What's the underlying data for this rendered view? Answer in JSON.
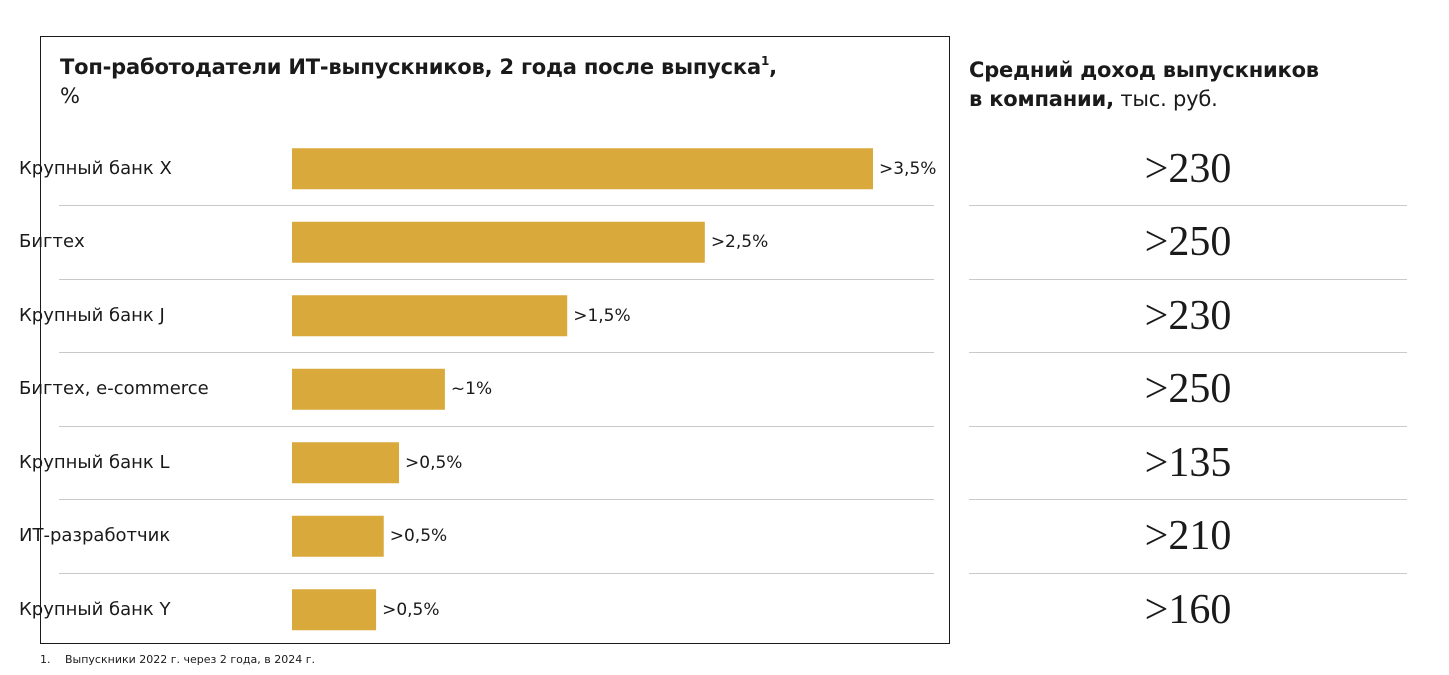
{
  "left_panel": {
    "title_line1": "Топ-работодатели ИТ-выпускников, 2 года после выпуска",
    "title_sup": "1",
    "title_comma": ",",
    "title_unit": "%"
  },
  "right_panel": {
    "title_bold_line1": "Средний доход выпускников",
    "title_bold_line2": "в компании,",
    "title_unit": " тыс. руб."
  },
  "chart_data": {
    "type": "bar",
    "orientation": "horizontal",
    "categories": [
      "Крупный банк X",
      "Бигтех",
      "Крупный банк J",
      "Бигтех, e-commerce",
      "Крупный банк L",
      "ИТ-разработчик",
      "Крупный банк Y"
    ],
    "values": [
      3.8,
      2.7,
      1.8,
      1.0,
      0.7,
      0.6,
      0.55
    ],
    "value_labels": [
      ">3,5%",
      ">2,5%",
      ">1,5%",
      "~1%",
      ">0,5%",
      ">0,5%",
      ">0,5%"
    ],
    "bar_color": "#d9a93c",
    "xlim": [
      0,
      3.8
    ],
    "title": "Топ-работодатели ИТ-выпускников, 2 года после выпуска, %",
    "xlabel": "",
    "ylabel": ""
  },
  "income_values": [
    ">230",
    ">250",
    ">230",
    ">250",
    ">135",
    ">210",
    ">160"
  ],
  "footnote": {
    "number": "1.",
    "text": "Выпускники 2022 г. через 2 года, в 2024 г."
  }
}
